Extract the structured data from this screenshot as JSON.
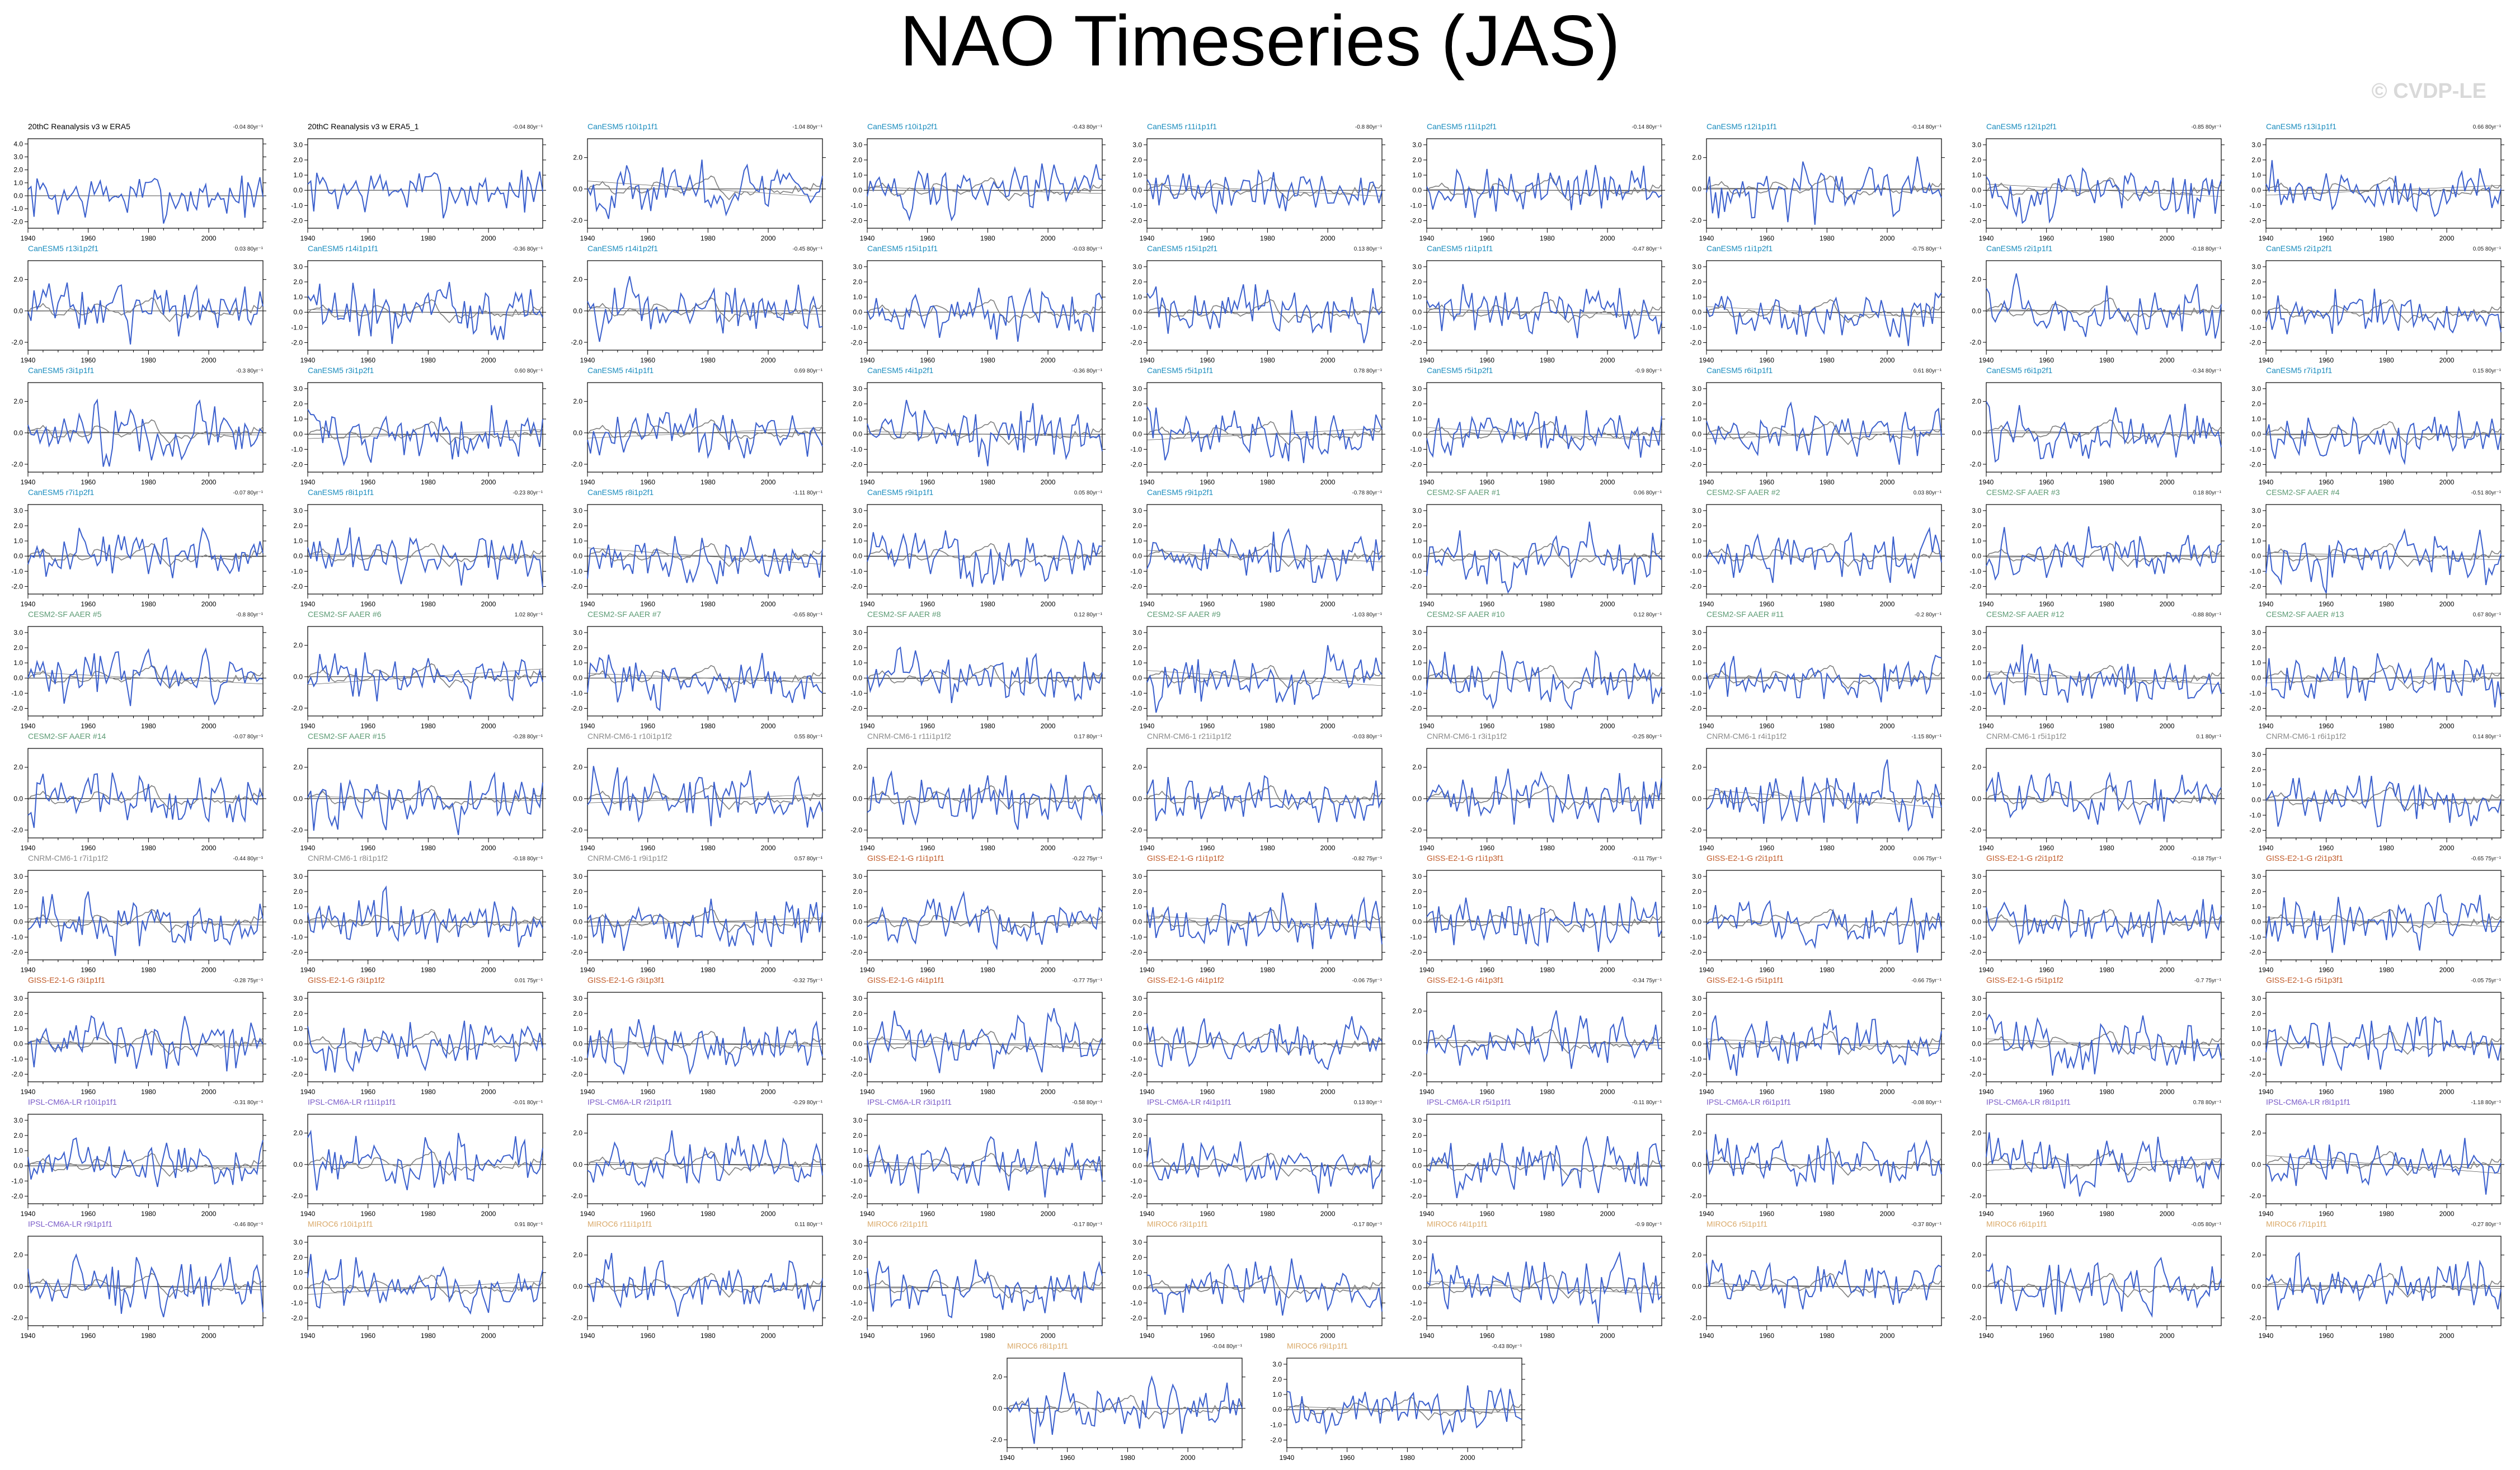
{
  "header": {
    "title": "NAO Timeseries (JAS)",
    "watermark": "© CVDP-LE"
  },
  "colors": {
    "obs_line": "#222222",
    "model_line": "#3a5fcd",
    "obs_series": "#7f7f7f",
    "obs_title": "#000000",
    "canesm": "#1a8cbe",
    "cesm2": "#5c9a74",
    "cnrm": "#8a8a8a",
    "giss": "#c05a28",
    "ipsl": "#7a5bc8",
    "miroc": "#d9a868"
  },
  "chart_data": {
    "type": "line",
    "xlim": [
      1940,
      2018
    ],
    "x_ticks": [
      "1940",
      "1960",
      "1980",
      "2000"
    ],
    "y_ticks_a": [
      "4.0",
      "3.0",
      "2.0",
      "1.0",
      "0.0",
      "-1.0",
      "-2.0"
    ],
    "y_ticks_b": [
      "3.0",
      "2.0",
      "1.0",
      "0.0",
      "-1.0",
      "-2.0"
    ],
    "y_ticks_c": [
      "2.0",
      "0.0",
      "-2.0"
    ],
    "panels": [
      {
        "title": "20thC Reanalysis v3 w ERA5",
        "stat": "-0.04 80yr⁻¹",
        "group": "obs",
        "yticks": "a"
      },
      {
        "title": "20thC Reanalysis v3 w ERA5_1",
        "stat": "-0.04 80yr⁻¹",
        "group": "obs",
        "yticks": "b"
      },
      {
        "title": "CanESM5 r10i1p1f1",
        "stat": "-1.04 80yr⁻¹",
        "group": "canesm",
        "yticks": "c"
      },
      {
        "title": "CanESM5 r10i1p2f1",
        "stat": "-0.43 80yr⁻¹",
        "group": "canesm",
        "yticks": "b"
      },
      {
        "title": "CanESM5 r11i1p1f1",
        "stat": "-0.8 80yr⁻¹",
        "group": "canesm",
        "yticks": "b"
      },
      {
        "title": "CanESM5 r11i1p2f1",
        "stat": "-0.14 80yr⁻¹",
        "group": "canesm",
        "yticks": "b"
      },
      {
        "title": "CanESM5 r12i1p1f1",
        "stat": "-0.14 80yr⁻¹",
        "group": "canesm",
        "yticks": "c"
      },
      {
        "title": "CanESM5 r12i1p2f1",
        "stat": "-0.85 80yr⁻¹",
        "group": "canesm",
        "yticks": "b"
      },
      {
        "title": "CanESM5 r13i1p1f1",
        "stat": "0.66 80yr⁻¹",
        "group": "canesm",
        "yticks": "b"
      },
      {
        "title": "CanESM5 r13i1p2f1",
        "stat": "0.03 80yr⁻¹",
        "group": "canesm",
        "yticks": "c"
      },
      {
        "title": "CanESM5 r14i1p1f1",
        "stat": "-0.36 80yr⁻¹",
        "group": "canesm",
        "yticks": "b"
      },
      {
        "title": "CanESM5 r14i1p2f1",
        "stat": "-0.45 80yr⁻¹",
        "group": "canesm",
        "yticks": "c"
      },
      {
        "title": "CanESM5 r15i1p1f1",
        "stat": "-0.03 80yr⁻¹",
        "group": "canesm",
        "yticks": "b"
      },
      {
        "title": "CanESM5 r15i1p2f1",
        "stat": "0.13 80yr⁻¹",
        "group": "canesm",
        "yticks": "b"
      },
      {
        "title": "CanESM5 r1i1p1f1",
        "stat": "-0.47 80yr⁻¹",
        "group": "canesm",
        "yticks": "b"
      },
      {
        "title": "CanESM5 r1i1p2f1",
        "stat": "-0.75 80yr⁻¹",
        "group": "canesm",
        "yticks": "b"
      },
      {
        "title": "CanESM5 r2i1p1f1",
        "stat": "-0.18 80yr⁻¹",
        "group": "canesm",
        "yticks": "c"
      },
      {
        "title": "CanESM5 r2i1p2f1",
        "stat": "0.05 80yr⁻¹",
        "group": "canesm",
        "yticks": "b"
      },
      {
        "title": "CanESM5 r3i1p1f1",
        "stat": "-0.3 80yr⁻¹",
        "group": "canesm",
        "yticks": "c"
      },
      {
        "title": "CanESM5 r3i1p2f1",
        "stat": "0.60 80yr⁻¹",
        "group": "canesm",
        "yticks": "b"
      },
      {
        "title": "CanESM5 r4i1p1f1",
        "stat": "0.69 80yr⁻¹",
        "group": "canesm",
        "yticks": "c"
      },
      {
        "title": "CanESM5 r4i1p2f1",
        "stat": "-0.36 80yr⁻¹",
        "group": "canesm",
        "yticks": "b"
      },
      {
        "title": "CanESM5 r5i1p1f1",
        "stat": "0.78 80yr⁻¹",
        "group": "canesm",
        "yticks": "b"
      },
      {
        "title": "CanESM5 r5i1p2f1",
        "stat": "-0.9 80yr⁻¹",
        "group": "canesm",
        "yticks": "b"
      },
      {
        "title": "CanESM5 r6i1p1f1",
        "stat": "0.61 80yr⁻¹",
        "group": "canesm",
        "yticks": "b"
      },
      {
        "title": "CanESM5 r6i1p2f1",
        "stat": "-0.34 80yr⁻¹",
        "group": "canesm",
        "yticks": "c"
      },
      {
        "title": "CanESM5 r7i1p1f1",
        "stat": "0.15 80yr⁻¹",
        "group": "canesm",
        "yticks": "b"
      },
      {
        "title": "CanESM5 r7i1p2f1",
        "stat": "-0.07 80yr⁻¹",
        "group": "canesm",
        "yticks": "b"
      },
      {
        "title": "CanESM5 r8i1p1f1",
        "stat": "-0.23 80yr⁻¹",
        "group": "canesm",
        "yticks": "b"
      },
      {
        "title": "CanESM5 r8i1p2f1",
        "stat": "-1.11 80yr⁻¹",
        "group": "canesm",
        "yticks": "b"
      },
      {
        "title": "CanESM5 r9i1p1f1",
        "stat": "0.05 80yr⁻¹",
        "group": "canesm",
        "yticks": "b"
      },
      {
        "title": "CanESM5 r9i1p2f1",
        "stat": "-0.78 80yr⁻¹",
        "group": "canesm",
        "yticks": "b"
      },
      {
        "title": "CESM2-SF AAER #1",
        "stat": "0.06 80yr⁻¹",
        "group": "cesm2",
        "yticks": "b"
      },
      {
        "title": "CESM2-SF AAER #2",
        "stat": "0.03 80yr⁻¹",
        "group": "cesm2",
        "yticks": "b"
      },
      {
        "title": "CESM2-SF AAER #3",
        "stat": "0.18 80yr⁻¹",
        "group": "cesm2",
        "yticks": "b"
      },
      {
        "title": "CESM2-SF AAER #4",
        "stat": "-0.51 80yr⁻¹",
        "group": "cesm2",
        "yticks": "b"
      },
      {
        "title": "CESM2-SF AAER #5",
        "stat": "-0.8 80yr⁻¹",
        "group": "cesm2",
        "yticks": "b"
      },
      {
        "title": "CESM2-SF AAER #6",
        "stat": "1.02 80yr⁻¹",
        "group": "cesm2",
        "yticks": "c"
      },
      {
        "title": "CESM2-SF AAER #7",
        "stat": "-0.65 80yr⁻¹",
        "group": "cesm2",
        "yticks": "b"
      },
      {
        "title": "CESM2-SF AAER #8",
        "stat": "0.12 80yr⁻¹",
        "group": "cesm2",
        "yticks": "b"
      },
      {
        "title": "CESM2-SF AAER #9",
        "stat": "-1.03 80yr⁻¹",
        "group": "cesm2",
        "yticks": "b"
      },
      {
        "title": "CESM2-SF AAER #10",
        "stat": "0.12 80yr⁻¹",
        "group": "cesm2",
        "yticks": "b"
      },
      {
        "title": "CESM2-SF AAER #11",
        "stat": "-0.2 80yr⁻¹",
        "group": "cesm2",
        "yticks": "b"
      },
      {
        "title": "CESM2-SF AAER #12",
        "stat": "-0.88 80yr⁻¹",
        "group": "cesm2",
        "yticks": "b"
      },
      {
        "title": "CESM2-SF AAER #13",
        "stat": "0.67 80yr⁻¹",
        "group": "cesm2",
        "yticks": "b"
      },
      {
        "title": "CESM2-SF AAER #14",
        "stat": "-0.07 80yr⁻¹",
        "group": "cesm2",
        "yticks": "c"
      },
      {
        "title": "CESM2-SF AAER #15",
        "stat": "-0.28 80yr⁻¹",
        "group": "cesm2",
        "yticks": "c"
      },
      {
        "title": "CNRM-CM6-1 r10i1p1f2",
        "stat": "0.55 80yr⁻¹",
        "group": "cnrm",
        "yticks": "c"
      },
      {
        "title": "CNRM-CM6-1 r11i1p1f2",
        "stat": "0.17 80yr⁻¹",
        "group": "cnrm",
        "yticks": "c"
      },
      {
        "title": "CNRM-CM6-1 r21i1p1f2",
        "stat": "-0.03 80yr⁻¹",
        "group": "cnrm",
        "yticks": "c"
      },
      {
        "title": "CNRM-CM6-1 r3i1p1f2",
        "stat": "-0.25 80yr⁻¹",
        "group": "cnrm",
        "yticks": "c"
      },
      {
        "title": "CNRM-CM6-1 r4i1p1f2",
        "stat": "-1.15 80yr⁻¹",
        "group": "cnrm",
        "yticks": "c"
      },
      {
        "title": "CNRM-CM6-1 r5i1p1f2",
        "stat": "0.1 80yr⁻¹",
        "group": "cnrm",
        "yticks": "c"
      },
      {
        "title": "CNRM-CM6-1 r6i1p1f2",
        "stat": "0.14 80yr⁻¹",
        "group": "cnrm",
        "yticks": "b"
      },
      {
        "title": "CNRM-CM6-1 r7i1p1f2",
        "stat": "-0.44 80yr⁻¹",
        "group": "cnrm",
        "yticks": "b"
      },
      {
        "title": "CNRM-CM6-1 r8i1p1f2",
        "stat": "-0.18 80yr⁻¹",
        "group": "cnrm",
        "yticks": "b"
      },
      {
        "title": "CNRM-CM6-1 r9i1p1f2",
        "stat": "0.57 80yr⁻¹",
        "group": "cnrm",
        "yticks": "b"
      },
      {
        "title": "GISS-E2-1-G r1i1p1f1",
        "stat": "-0.22 75yr⁻¹",
        "group": "giss",
        "yticks": "b"
      },
      {
        "title": "GISS-E2-1-G r1i1p1f2",
        "stat": "-0.82 75yr⁻¹",
        "group": "giss",
        "yticks": "b"
      },
      {
        "title": "GISS-E2-1-G r1i1p3f1",
        "stat": "-0.11 75yr⁻¹",
        "group": "giss",
        "yticks": "b"
      },
      {
        "title": "GISS-E2-1-G r2i1p1f1",
        "stat": "0.06 75yr⁻¹",
        "group": "giss",
        "yticks": "b"
      },
      {
        "title": "GISS-E2-1-G r2i1p1f2",
        "stat": "-0.18 75yr⁻¹",
        "group": "giss",
        "yticks": "b"
      },
      {
        "title": "GISS-E2-1-G r2i1p3f1",
        "stat": "-0.65 75yr⁻¹",
        "group": "giss",
        "yticks": "b"
      },
      {
        "title": "GISS-E2-1-G r3i1p1f1",
        "stat": "-0.28 75yr⁻¹",
        "group": "giss",
        "yticks": "b"
      },
      {
        "title": "GISS-E2-1-G r3i1p1f2",
        "stat": "0.01 75yr⁻¹",
        "group": "giss",
        "yticks": "b"
      },
      {
        "title": "GISS-E2-1-G r3i1p3f1",
        "stat": "-0.32 75yr⁻¹",
        "group": "giss",
        "yticks": "b"
      },
      {
        "title": "GISS-E2-1-G r4i1p1f1",
        "stat": "-0.77 75yr⁻¹",
        "group": "giss",
        "yticks": "b"
      },
      {
        "title": "GISS-E2-1-G r4i1p1f2",
        "stat": "-0.06 75yr⁻¹",
        "group": "giss",
        "yticks": "b"
      },
      {
        "title": "GISS-E2-1-G r4i1p3f1",
        "stat": "-0.34 75yr⁻¹",
        "group": "giss",
        "yticks": "c"
      },
      {
        "title": "GISS-E2-1-G r5i1p1f1",
        "stat": "-0.66 75yr⁻¹",
        "group": "giss",
        "yticks": "b"
      },
      {
        "title": "GISS-E2-1-G r5i1p1f2",
        "stat": "-0.7 75yr⁻¹",
        "group": "giss",
        "yticks": "b"
      },
      {
        "title": "GISS-E2-1-G r5i1p3f1",
        "stat": "-0.05 75yr⁻¹",
        "group": "giss",
        "yticks": "b"
      },
      {
        "title": "IPSL-CM6A-LR r10i1p1f1",
        "stat": "-0.31 80yr⁻¹",
        "group": "ipsl",
        "yticks": "b"
      },
      {
        "title": "IPSL-CM6A-LR r11i1p1f1",
        "stat": "-0.01 80yr⁻¹",
        "group": "ipsl",
        "yticks": "c"
      },
      {
        "title": "IPSL-CM6A-LR r2i1p1f1",
        "stat": "-0.29 80yr⁻¹",
        "group": "ipsl",
        "yticks": "c"
      },
      {
        "title": "IPSL-CM6A-LR r3i1p1f1",
        "stat": "-0.58 80yr⁻¹",
        "group": "ipsl",
        "yticks": "b"
      },
      {
        "title": "IPSL-CM6A-LR r4i1p1f1",
        "stat": "0.13 80yr⁻¹",
        "group": "ipsl",
        "yticks": "b"
      },
      {
        "title": "IPSL-CM6A-LR r5i1p1f1",
        "stat": "-0.11 80yr⁻¹",
        "group": "ipsl",
        "yticks": "b"
      },
      {
        "title": "IPSL-CM6A-LR r6i1p1f1",
        "stat": "-0.08 80yr⁻¹",
        "group": "ipsl",
        "yticks": "c"
      },
      {
        "title": "IPSL-CM6A-LR r8i1p1f1",
        "stat": "0.78 80yr⁻¹",
        "group": "ipsl",
        "yticks": "c"
      },
      {
        "title": "IPSL-CM6A-LR r8i1p1f1",
        "stat": "-1.18 80yr⁻¹",
        "group": "ipsl",
        "yticks": "c"
      },
      {
        "title": "IPSL-CM6A-LR r9i1p1f1",
        "stat": "-0.46 80yr⁻¹",
        "group": "ipsl",
        "yticks": "c"
      },
      {
        "title": "MIROC6 r10i1p1f1",
        "stat": "0.91 80yr⁻¹",
        "group": "miroc",
        "yticks": "b"
      },
      {
        "title": "MIROC6 r11i1p1f1",
        "stat": "0.11 80yr⁻¹",
        "group": "miroc",
        "yticks": "c"
      },
      {
        "title": "MIROC6 r2i1p1f1",
        "stat": "-0.17 80yr⁻¹",
        "group": "miroc",
        "yticks": "b"
      },
      {
        "title": "MIROC6 r3i1p1f1",
        "stat": "-0.17 80yr⁻¹",
        "group": "miroc",
        "yticks": "b"
      },
      {
        "title": "MIROC6 r4i1p1f1",
        "stat": "-0.9 80yr⁻¹",
        "group": "miroc",
        "yticks": "b"
      },
      {
        "title": "MIROC6 r5i1p1f1",
        "stat": "-0.37 80yr⁻¹",
        "group": "miroc",
        "yticks": "c"
      },
      {
        "title": "MIROC6 r6i1p1f1",
        "stat": "-0.05 80yr⁻¹",
        "group": "miroc",
        "yticks": "c"
      },
      {
        "title": "MIROC6 r7i1p1f1",
        "stat": "-0.27 80yr⁻¹",
        "group": "miroc",
        "yticks": "c"
      },
      {
        "title": "MIROC6 r8i1p1f1",
        "stat": "-0.04 80yr⁻¹",
        "group": "miroc",
        "yticks": "c"
      },
      {
        "title": "MIROC6 r9i1p1f1",
        "stat": "-0.43 80yr⁻¹",
        "group": "miroc",
        "yticks": "b"
      }
    ]
  }
}
